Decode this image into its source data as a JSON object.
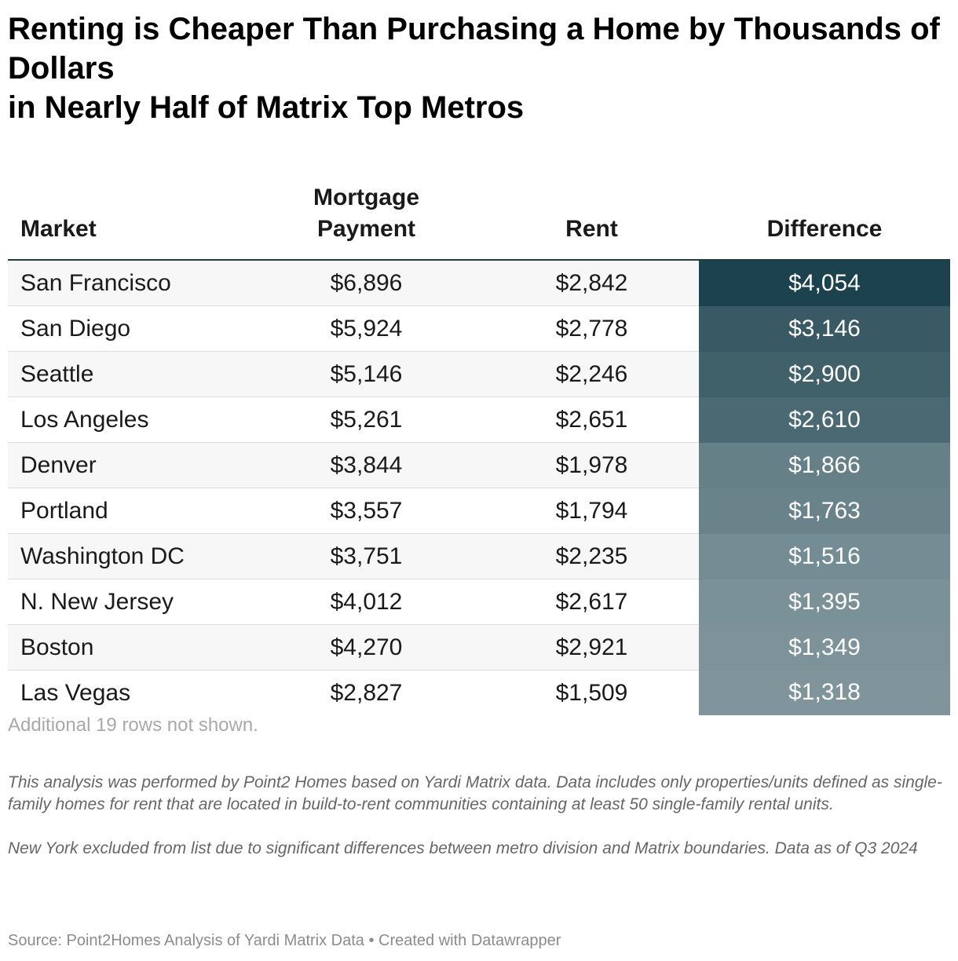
{
  "title_lines": [
    "Renting is Cheaper Than Purchasing a Home by Thousands of Dollars",
    "in Nearly Half of Matrix Top Metros"
  ],
  "headers": {
    "market": "Market",
    "mortgage_line1": "Mortgage",
    "mortgage_line2": "Payment",
    "rent": "Rent",
    "difference": "Difference"
  },
  "colors": {
    "difference_high": "#1c424d",
    "difference_low": "#7f959b"
  },
  "chart_data": {
    "type": "table",
    "title": "Renting is Cheaper Than Purchasing a Home by Thousands of Dollars in Nearly Half of Matrix Top Metros",
    "columns": [
      "Market",
      "Mortgage Payment",
      "Rent",
      "Difference"
    ],
    "rows": [
      {
        "market": "San Francisco",
        "mortgage": "$6,896",
        "rent": "$2,842",
        "difference": "$4,054",
        "difference_value": 4054
      },
      {
        "market": "San Diego",
        "mortgage": "$5,924",
        "rent": "$2,778",
        "difference": "$3,146",
        "difference_value": 3146
      },
      {
        "market": "Seattle",
        "mortgage": "$5,146",
        "rent": "$2,246",
        "difference": "$2,900",
        "difference_value": 2900
      },
      {
        "market": "Los Angeles",
        "mortgage": "$5,261",
        "rent": "$2,651",
        "difference": "$2,610",
        "difference_value": 2610
      },
      {
        "market": "Denver",
        "mortgage": "$3,844",
        "rent": "$1,978",
        "difference": "$1,866",
        "difference_value": 1866
      },
      {
        "market": "Portland",
        "mortgage": "$3,557",
        "rent": "$1,794",
        "difference": "$1,763",
        "difference_value": 1763
      },
      {
        "market": "Washington DC",
        "mortgage": "$3,751",
        "rent": "$2,235",
        "difference": "$1,516",
        "difference_value": 1516
      },
      {
        "market": "N. New Jersey",
        "mortgage": "$4,012",
        "rent": "$2,617",
        "difference": "$1,395",
        "difference_value": 1395
      },
      {
        "market": "Boston",
        "mortgage": "$4,270",
        "rent": "$2,921",
        "difference": "$1,349",
        "difference_value": 1349
      },
      {
        "market": "Las Vegas",
        "mortgage": "$2,827",
        "rent": "$1,509",
        "difference": "$1,318",
        "difference_value": 1318
      }
    ]
  },
  "rows_note": "Additional 19 rows not shown.",
  "notes": [
    "This analysis was performed by Point2 Homes based on Yardi Matrix data. Data includes only properties/units defined as single-family homes for rent that are located in build-to-rent communities containing at least 50 single-family rental units.",
    "New York excluded from list due to significant differences between metro division and Matrix boundaries. Data as of Q3 2024"
  ],
  "source": "Source: Point2Homes Analysis of Yardi Matrix Data • Created with Datawrapper"
}
